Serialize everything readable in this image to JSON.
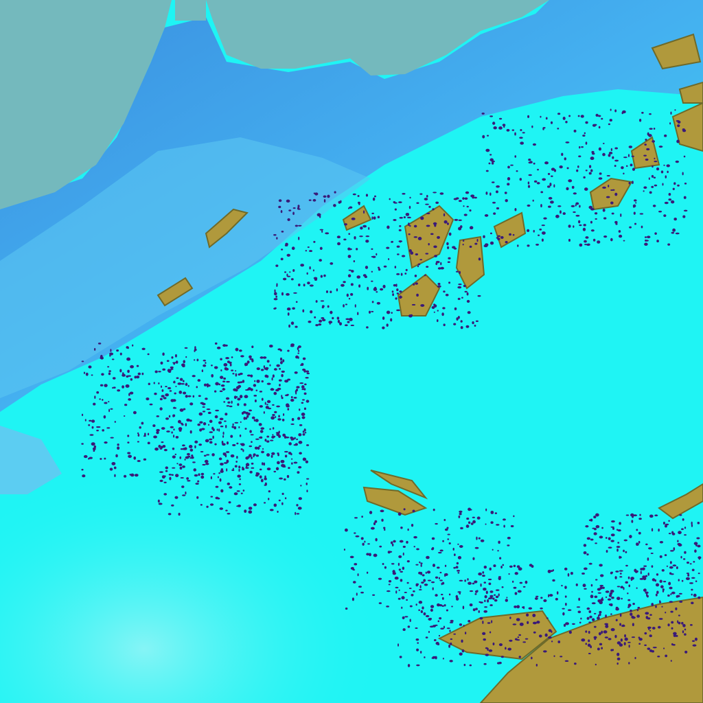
{
  "image": {
    "kind": "false-color satellite imagery",
    "colors": {
      "sea": "#74b9bd",
      "coastal_land": "#3a9fe6",
      "snow_cloud": "#1ff4f4",
      "pale_haze": "#8ff2f6",
      "terrain": "#b0993c",
      "terrain_dark": "#6e6a2a",
      "cloud_dots": "#3a1a78"
    }
  }
}
